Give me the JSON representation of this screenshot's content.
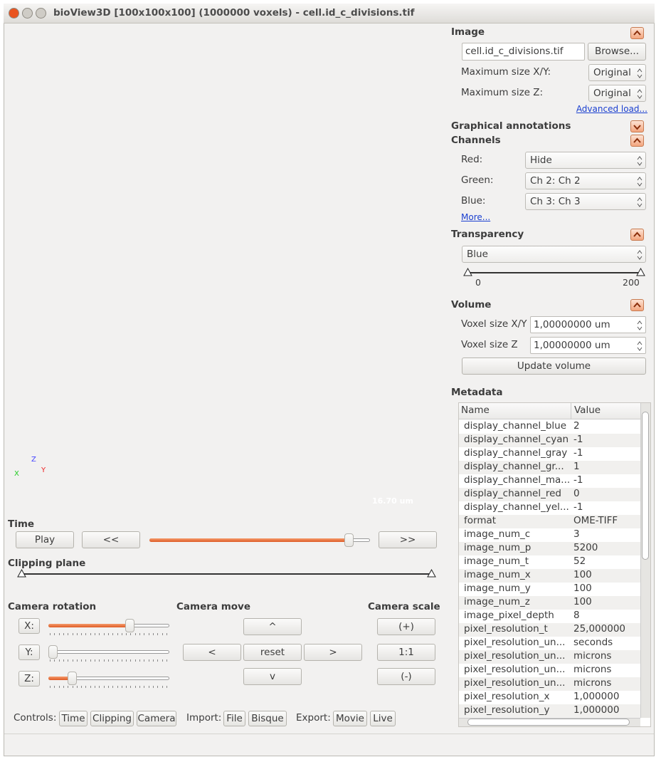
{
  "window": {
    "title": "bioView3D [100x100x100] (1000000 voxels) - cell.id_c_divisions.tif"
  },
  "viewer": {
    "scale_bar": "16.70 um",
    "axes": [
      "X",
      "Y",
      "Z"
    ]
  },
  "time": {
    "label": "Time",
    "play": "Play",
    "back": "<<",
    "forward": ">>"
  },
  "clipping": {
    "label": "Clipping plane"
  },
  "camera_rotation": {
    "label": "Camera rotation",
    "axes": [
      "X:",
      "Y:",
      "Z:"
    ]
  },
  "camera_move": {
    "label": "Camera move",
    "up": "^",
    "left": "<",
    "reset": "reset",
    "right": ">",
    "down": "v"
  },
  "camera_scale": {
    "label": "Camera scale",
    "plus": "(+)",
    "one": "1:1",
    "minus": "(-)"
  },
  "footer": {
    "controls": "Controls:",
    "controls_buttons": [
      "Time",
      "Clipping",
      "Camera"
    ],
    "import": "Import:",
    "import_buttons": [
      "File",
      "Bisque"
    ],
    "export": "Export:",
    "export_buttons": [
      "Movie",
      "Live"
    ]
  },
  "panel": {
    "image": {
      "title": "Image",
      "file": "cell.id_c_divisions.tif",
      "browse": "Browse...",
      "rows": [
        {
          "label": "Maximum size X/Y:",
          "value": "Original"
        },
        {
          "label": "Maximum size Z:",
          "value": "Original"
        }
      ],
      "link": "Advanced load..."
    },
    "annotations": {
      "title": "Graphical annotations"
    },
    "channels": {
      "title": "Channels",
      "rows": [
        {
          "label": "Red:",
          "value": "Hide"
        },
        {
          "label": "Green:",
          "value": "Ch 2: Ch 2"
        },
        {
          "label": "Blue:",
          "value": "Ch 3: Ch 3"
        }
      ],
      "link": "More..."
    },
    "transparency": {
      "title": "Transparency",
      "value": "Blue",
      "min": "0",
      "max": "200"
    },
    "volume": {
      "title": "Volume",
      "rows": [
        {
          "label": "Voxel size X/Y",
          "value": "1,00000000 um"
        },
        {
          "label": "Voxel size Z",
          "value": "1,00000000 um"
        }
      ],
      "button": "Update volume"
    },
    "metadata": {
      "title": "Metadata",
      "columns": [
        "Name",
        "Value"
      ],
      "rows": [
        [
          "display_channel_blue",
          "2"
        ],
        [
          "display_channel_cyan",
          "-1"
        ],
        [
          "display_channel_gray",
          "-1"
        ],
        [
          "display_channel_gr...",
          "1"
        ],
        [
          "display_channel_ma...",
          "-1"
        ],
        [
          "display_channel_red",
          "0"
        ],
        [
          "display_channel_yel...",
          "-1"
        ],
        [
          "format",
          "OME-TIFF"
        ],
        [
          "image_num_c",
          "3"
        ],
        [
          "image_num_p",
          "5200"
        ],
        [
          "image_num_t",
          "52"
        ],
        [
          "image_num_x",
          "100"
        ],
        [
          "image_num_y",
          "100"
        ],
        [
          "image_num_z",
          "100"
        ],
        [
          "image_pixel_depth",
          "8"
        ],
        [
          "pixel_resolution_t",
          "25,000000"
        ],
        [
          "pixel_resolution_un...",
          "seconds"
        ],
        [
          "pixel_resolution_un...",
          "microns"
        ],
        [
          "pixel_resolution_un...",
          "microns"
        ],
        [
          "pixel_resolution_un...",
          "microns"
        ],
        [
          "pixel_resolution_x",
          "1,000000"
        ],
        [
          "pixel_resolution_y",
          "1,000000"
        ]
      ]
    }
  }
}
